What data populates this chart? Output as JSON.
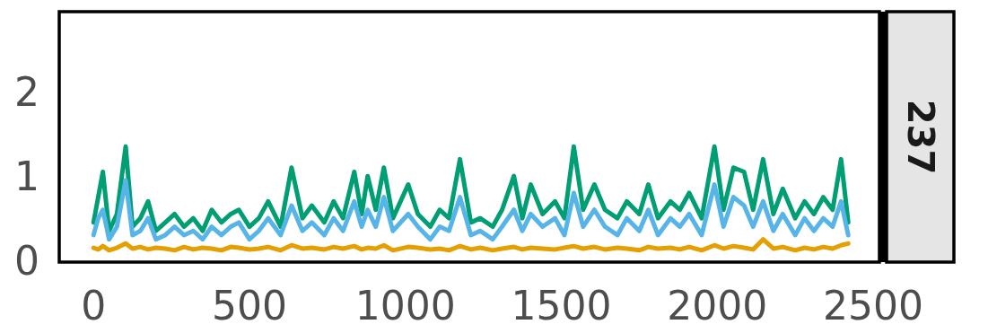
{
  "chart_data": {
    "type": "line",
    "title": "237",
    "xlim": [
      -110,
      2520
    ],
    "ylim": [
      -0.02,
      2.95
    ],
    "xticks": [
      0,
      500,
      1000,
      1500,
      2000,
      2500
    ],
    "yticks": [
      0,
      1,
      2
    ],
    "grid": false,
    "x": [
      0,
      15,
      30,
      50,
      75,
      103,
      125,
      150,
      175,
      200,
      230,
      260,
      290,
      320,
      350,
      379,
      410,
      440,
      466,
      500,
      530,
      560,
      600,
      635,
      670,
      700,
      740,
      770,
      800,
      836,
      860,
      879,
      905,
      931,
      960,
      1009,
      1040,
      1080,
      1110,
      1140,
      1175,
      1210,
      1240,
      1280,
      1310,
      1348,
      1375,
      1402,
      1440,
      1480,
      1510,
      1540,
      1570,
      1606,
      1640,
      1680,
      1710,
      1750,
      1779,
      1810,
      1850,
      1880,
      1910,
      1950,
      1991,
      2020,
      2052,
      2086,
      2115,
      2147,
      2180,
      2210,
      2250,
      2280,
      2310,
      2340,
      2370,
      2397,
      2420
    ],
    "series": [
      {
        "color": "#009e73",
        "values": [
          0.45,
          0.75,
          1.05,
          0.35,
          0.55,
          1.35,
          0.4,
          0.5,
          0.7,
          0.35,
          0.45,
          0.55,
          0.4,
          0.5,
          0.35,
          0.6,
          0.45,
          0.55,
          0.6,
          0.4,
          0.5,
          0.7,
          0.4,
          1.1,
          0.5,
          0.65,
          0.45,
          0.7,
          0.5,
          1.05,
          0.55,
          1.0,
          0.6,
          1.1,
          0.5,
          0.9,
          0.55,
          0.4,
          0.6,
          0.5,
          1.2,
          0.45,
          0.5,
          0.4,
          0.6,
          1.0,
          0.5,
          0.9,
          0.55,
          0.7,
          0.5,
          1.35,
          0.6,
          0.9,
          0.6,
          0.5,
          0.7,
          0.55,
          0.9,
          0.5,
          0.7,
          0.6,
          0.8,
          0.5,
          1.35,
          0.6,
          1.1,
          1.05,
          0.6,
          1.2,
          0.55,
          0.85,
          0.5,
          0.7,
          0.55,
          0.75,
          0.6,
          1.2,
          0.45
        ]
      },
      {
        "color": "#56b4e9",
        "values": [
          0.3,
          0.5,
          0.6,
          0.25,
          0.4,
          0.95,
          0.3,
          0.35,
          0.5,
          0.25,
          0.3,
          0.4,
          0.3,
          0.35,
          0.25,
          0.4,
          0.3,
          0.4,
          0.45,
          0.25,
          0.35,
          0.5,
          0.3,
          0.65,
          0.35,
          0.45,
          0.3,
          0.5,
          0.35,
          0.7,
          0.4,
          0.6,
          0.4,
          0.75,
          0.35,
          0.55,
          0.4,
          0.25,
          0.4,
          0.35,
          0.75,
          0.3,
          0.35,
          0.25,
          0.4,
          0.6,
          0.35,
          0.55,
          0.4,
          0.5,
          0.3,
          0.8,
          0.4,
          0.6,
          0.4,
          0.3,
          0.5,
          0.35,
          0.6,
          0.3,
          0.5,
          0.4,
          0.55,
          0.3,
          0.9,
          0.4,
          0.75,
          0.65,
          0.4,
          0.7,
          0.35,
          0.55,
          0.3,
          0.5,
          0.35,
          0.5,
          0.4,
          0.7,
          0.3
        ]
      },
      {
        "color": "#e69f00",
        "values": [
          0.15,
          0.13,
          0.17,
          0.12,
          0.15,
          0.2,
          0.14,
          0.16,
          0.13,
          0.15,
          0.14,
          0.12,
          0.16,
          0.13,
          0.15,
          0.14,
          0.12,
          0.16,
          0.15,
          0.13,
          0.14,
          0.16,
          0.12,
          0.18,
          0.14,
          0.15,
          0.13,
          0.16,
          0.14,
          0.17,
          0.13,
          0.15,
          0.14,
          0.18,
          0.12,
          0.16,
          0.15,
          0.13,
          0.14,
          0.12,
          0.17,
          0.13,
          0.15,
          0.12,
          0.14,
          0.16,
          0.13,
          0.15,
          0.14,
          0.13,
          0.15,
          0.17,
          0.14,
          0.16,
          0.13,
          0.15,
          0.14,
          0.12,
          0.16,
          0.14,
          0.15,
          0.13,
          0.16,
          0.12,
          0.18,
          0.14,
          0.17,
          0.15,
          0.13,
          0.25,
          0.14,
          0.16,
          0.12,
          0.15,
          0.13,
          0.16,
          0.14,
          0.18,
          0.2
        ]
      }
    ]
  }
}
